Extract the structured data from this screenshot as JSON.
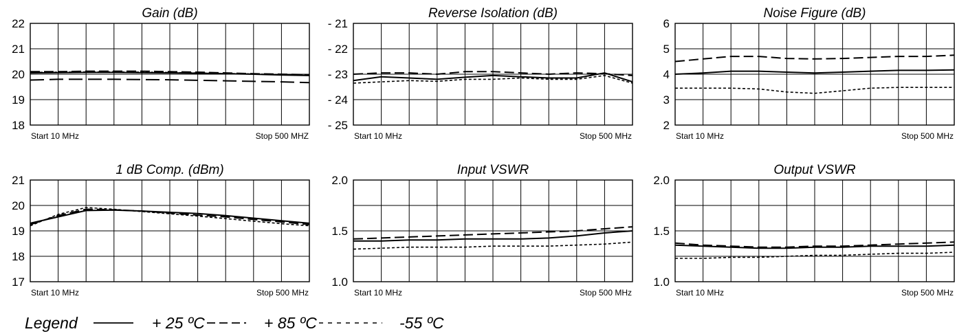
{
  "chart_data": [
    {
      "type": "line",
      "title": "Gain (dB)",
      "ylim": [
        18,
        22
      ],
      "yticks": [
        "22",
        "21",
        "20",
        "19",
        "18"
      ],
      "x_start_label": "Start  10  MHz",
      "x_stop_label": "Stop 500  MHZ",
      "grid": true,
      "x": [
        10,
        59,
        108,
        157,
        206,
        255,
        304,
        353,
        402,
        451,
        500
      ],
      "series": [
        {
          "name": "+ 25 ºC",
          "style": "solid",
          "values": [
            20.05,
            20.06,
            20.07,
            20.07,
            20.06,
            20.05,
            20.04,
            20.02,
            20.0,
            19.97,
            19.95
          ]
        },
        {
          "name": "+ 85 ºC",
          "style": "dashed",
          "values": [
            20.1,
            20.1,
            20.12,
            20.12,
            20.12,
            20.1,
            20.08,
            20.05,
            20.02,
            20.0,
            19.98
          ]
        },
        {
          "name": "-55 ºC",
          "style": "dotted",
          "values": [
            20.07,
            20.08,
            20.09,
            20.09,
            20.08,
            20.07,
            20.05,
            20.03,
            20.01,
            19.98,
            19.96
          ]
        },
        {
          "name": "",
          "style": "longdash",
          "values": [
            19.77,
            19.8,
            19.8,
            19.8,
            19.79,
            19.78,
            19.76,
            19.74,
            19.72,
            19.7,
            19.67
          ]
        }
      ]
    },
    {
      "type": "line",
      "title": "Reverse Isolation (dB)",
      "ylim": [
        -25,
        -21
      ],
      "yticks": [
        "- 21",
        "- 22",
        "- 23",
        "- 24",
        "- 25"
      ],
      "x_start_label": "Start  10  MHz",
      "x_stop_label": "Stop 500  MHz",
      "grid": true,
      "x": [
        10,
        59,
        108,
        157,
        206,
        255,
        304,
        353,
        402,
        451,
        500
      ],
      "series": [
        {
          "name": "+ 25 ºC",
          "style": "solid",
          "values": [
            -23.25,
            -23.1,
            -23.15,
            -23.2,
            -23.12,
            -23.05,
            -23.1,
            -23.15,
            -23.15,
            -22.95,
            -23.3
          ]
        },
        {
          "name": "+ 85 ºC",
          "style": "dashed",
          "values": [
            -23.0,
            -22.95,
            -22.95,
            -23.0,
            -22.9,
            -22.9,
            -22.95,
            -23.0,
            -22.95,
            -22.98,
            -23.05
          ]
        },
        {
          "name": "-55 ºC",
          "style": "dotted",
          "values": [
            -23.35,
            -23.3,
            -23.25,
            -23.28,
            -23.2,
            -23.2,
            -23.15,
            -23.2,
            -23.2,
            -23.05,
            -23.35
          ]
        }
      ]
    },
    {
      "type": "line",
      "title": "Noise Figure (dB)",
      "ylim": [
        2,
        6
      ],
      "yticks": [
        "6",
        "5",
        "4",
        "3",
        "2"
      ],
      "x_start_label": "Start  10  MHz",
      "x_stop_label": "Stop 500  MHz",
      "grid": true,
      "x": [
        10,
        59,
        108,
        157,
        206,
        255,
        304,
        353,
        402,
        451,
        500
      ],
      "series": [
        {
          "name": "+ 25 ºC",
          "style": "solid",
          "values": [
            4.0,
            4.05,
            4.12,
            4.12,
            4.08,
            4.05,
            4.08,
            4.12,
            4.15,
            4.15,
            4.17
          ]
        },
        {
          "name": "+ 85 ºC",
          "style": "dashed",
          "values": [
            4.5,
            4.6,
            4.7,
            4.7,
            4.62,
            4.6,
            4.62,
            4.66,
            4.7,
            4.7,
            4.75
          ]
        },
        {
          "name": "-55 ºC",
          "style": "dotted",
          "values": [
            3.45,
            3.45,
            3.45,
            3.42,
            3.3,
            3.25,
            3.35,
            3.45,
            3.48,
            3.48,
            3.48
          ]
        }
      ]
    },
    {
      "type": "line",
      "title": "1 dB Comp. (dBm)",
      "ylim": [
        17,
        21
      ],
      "yticks": [
        "21",
        "20",
        "19",
        "18",
        "17"
      ],
      "x_start_label": "Start 10  MHz",
      "x_stop_label": "Stop 500  MHz",
      "grid": true,
      "x": [
        10,
        59,
        108,
        157,
        206,
        255,
        304,
        353,
        402,
        451,
        500
      ],
      "series": [
        {
          "name": "+ 25 ºC",
          "style": "solid",
          "values": [
            19.3,
            19.55,
            19.8,
            19.82,
            19.78,
            19.73,
            19.68,
            19.6,
            19.5,
            19.4,
            19.3
          ]
        },
        {
          "name": "+ 85 ºC",
          "style": "dashed",
          "values": [
            19.25,
            19.6,
            19.85,
            19.83,
            19.78,
            19.7,
            19.62,
            19.55,
            19.45,
            19.35,
            19.25
          ]
        },
        {
          "name": "-55 ºC",
          "style": "dotted",
          "values": [
            19.2,
            19.65,
            19.92,
            19.85,
            19.76,
            19.67,
            19.58,
            19.48,
            19.38,
            19.28,
            19.2
          ]
        }
      ]
    },
    {
      "type": "line",
      "title": "Input VSWR",
      "ylim": [
        1.0,
        2.0
      ],
      "yticks": [
        "2.0",
        "1.5",
        "1.0"
      ],
      "x_start_label": "Start 10  MHz",
      "x_stop_label": "Stop 500  MHz",
      "grid": true,
      "x": [
        10,
        59,
        108,
        157,
        206,
        255,
        304,
        353,
        402,
        451,
        500
      ],
      "series": [
        {
          "name": "+ 25 ºC",
          "style": "solid",
          "values": [
            1.4,
            1.4,
            1.41,
            1.41,
            1.42,
            1.42,
            1.42,
            1.43,
            1.45,
            1.48,
            1.5
          ]
        },
        {
          "name": "+ 85 ºC",
          "style": "dashed",
          "values": [
            1.42,
            1.43,
            1.44,
            1.45,
            1.46,
            1.47,
            1.48,
            1.49,
            1.5,
            1.52,
            1.54
          ]
        },
        {
          "name": "-55 ºC",
          "style": "dotted",
          "values": [
            1.32,
            1.33,
            1.34,
            1.34,
            1.34,
            1.35,
            1.35,
            1.35,
            1.36,
            1.37,
            1.39
          ]
        }
      ]
    },
    {
      "type": "line",
      "title": "Output VSWR",
      "ylim": [
        1.0,
        2.0
      ],
      "yticks": [
        "2.0",
        "1.5",
        "1.0"
      ],
      "x_start_label": "Start 10  MHz",
      "x_stop_label": "Stop 500  MHz",
      "grid": true,
      "x": [
        10,
        59,
        108,
        157,
        206,
        255,
        304,
        353,
        402,
        451,
        500
      ],
      "series": [
        {
          "name": "+ 25 ºC",
          "style": "solid",
          "values": [
            1.36,
            1.35,
            1.34,
            1.33,
            1.33,
            1.34,
            1.34,
            1.35,
            1.35,
            1.35,
            1.36
          ]
        },
        {
          "name": "+ 85 ºC",
          "style": "dashed",
          "values": [
            1.38,
            1.36,
            1.35,
            1.34,
            1.34,
            1.35,
            1.35,
            1.36,
            1.37,
            1.38,
            1.39
          ]
        },
        {
          "name": "-55 ºC",
          "style": "dotted",
          "values": [
            1.23,
            1.23,
            1.24,
            1.24,
            1.25,
            1.26,
            1.26,
            1.27,
            1.28,
            1.28,
            1.29
          ]
        }
      ]
    }
  ],
  "legend": {
    "label": "Legend",
    "items": [
      {
        "style": "solid",
        "text": "+ 25 ºC"
      },
      {
        "style": "dashed",
        "text": "+ 85 ºC"
      },
      {
        "style": "dotted",
        "text": "-55 ºC"
      }
    ]
  }
}
